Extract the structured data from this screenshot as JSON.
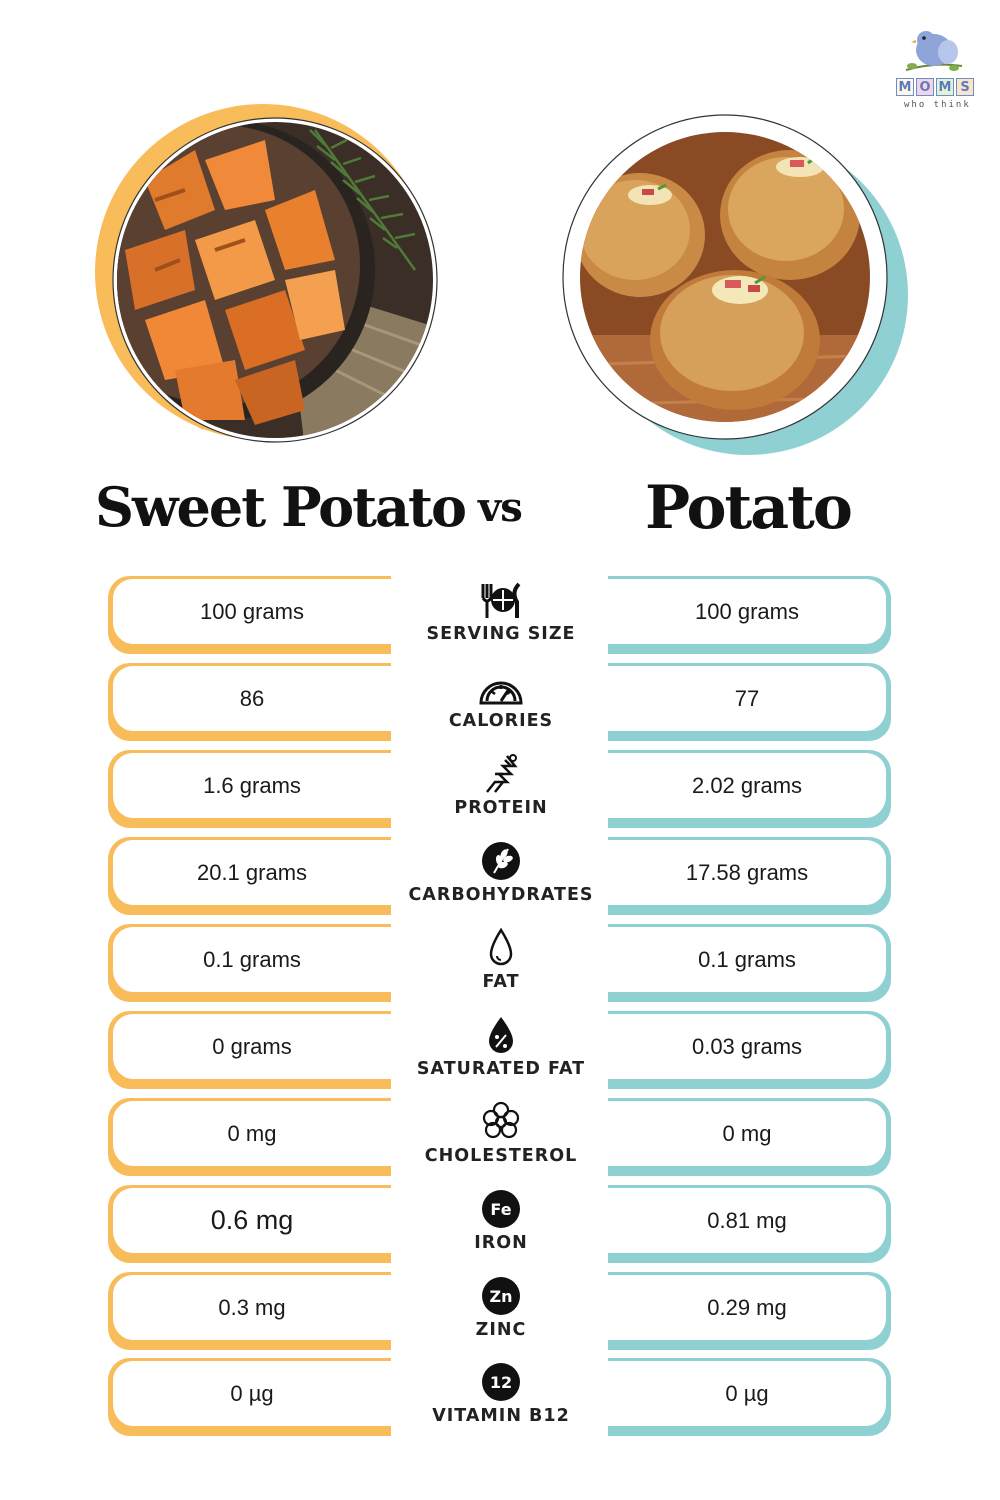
{
  "brand": {
    "logo_letters": [
      "M",
      "O",
      "M",
      "S"
    ],
    "logo_tagline": "who think"
  },
  "header": {
    "left_title": "Sweet Potato",
    "vs": "vs",
    "right_title": "Potato"
  },
  "colors": {
    "sweet_potato_accent": "#f8bd5a",
    "potato_accent": "#8fd0d3"
  },
  "rows": [
    {
      "nutrient": "SERVING SIZE",
      "icon": "fork-plate-knife-icon",
      "sweet_potato": "100 grams",
      "potato": "100 grams"
    },
    {
      "nutrient": "CALORIES",
      "icon": "gauge-icon",
      "sweet_potato": "86",
      "potato": "77"
    },
    {
      "nutrient": "PROTEIN",
      "icon": "protein-helix-icon",
      "sweet_potato": "1.6 grams",
      "potato": "2.02 grams"
    },
    {
      "nutrient": "CARBOHYDRATES",
      "icon": "wheat-icon",
      "sweet_potato": "20.1 grams",
      "potato": "17.58 grams"
    },
    {
      "nutrient": "FAT",
      "icon": "drop-icon",
      "sweet_potato": "0.1 grams",
      "potato": "0.1 grams"
    },
    {
      "nutrient": "SATURATED FAT",
      "icon": "drop-percent-icon",
      "sweet_potato": "0 grams",
      "potato": "0.03 grams"
    },
    {
      "nutrient": "CHOLESTEROL",
      "icon": "molecule-cluster-icon",
      "sweet_potato": "0 mg",
      "potato": "0 mg"
    },
    {
      "nutrient": "IRON",
      "icon": "iron-fe-icon",
      "icon_text": "Fe",
      "sweet_potato": "0.6 mg",
      "potato": "0.81 mg"
    },
    {
      "nutrient": "ZINC",
      "icon": "zinc-zn-icon",
      "icon_text": "Zn",
      "sweet_potato": "0.3 mg",
      "potato": "0.29 mg"
    },
    {
      "nutrient": "VITAMIN B12",
      "icon": "vitamin-b12-icon",
      "icon_text": "12",
      "sweet_potato": "0 µg",
      "potato": "0 µg"
    }
  ]
}
